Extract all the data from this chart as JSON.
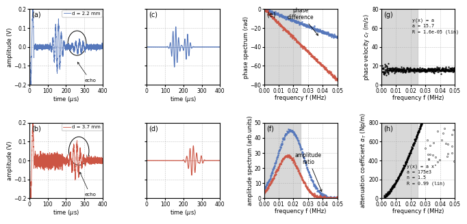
{
  "fig_width": 6.75,
  "fig_height": 3.3,
  "dpi": 100,
  "panel_labels": [
    "(a)",
    "(b)",
    "(c)",
    "(d)",
    "(e)",
    "(f)",
    "(g)",
    "(h)"
  ],
  "legend_a": "d = 2.2 mm",
  "legend_b": "d = 3.7 mm",
  "blue_color": "#5577bb",
  "red_color": "#cc5544",
  "gray_shade": "#c8c8c8",
  "time_xlim": [
    0,
    400
  ],
  "time_xticks": [
    0,
    100,
    200,
    300,
    400
  ],
  "freq_xlim": [
    0,
    0.05
  ],
  "freq_xticks": [
    0,
    0.01,
    0.02,
    0.03,
    0.04,
    0.05
  ],
  "amp_ylim": [
    -0.2,
    0.2
  ],
  "amp_yticks": [
    -0.2,
    -0.1,
    0,
    0.1,
    0.2
  ],
  "phase_ylim": [
    -80,
    0
  ],
  "phase_yticks": [
    -80,
    -60,
    -40,
    -20,
    0
  ],
  "amp_spec_ylim": [
    0,
    50
  ],
  "amp_spec_yticks": [
    0,
    10,
    20,
    30,
    40,
    50
  ],
  "vel_ylim": [
    0,
    80
  ],
  "vel_yticks": [
    0,
    20,
    40,
    60,
    80
  ],
  "atten_ylim": [
    0,
    800
  ],
  "atten_yticks": [
    0,
    200,
    400,
    600,
    800
  ],
  "gray_band_ef": [
    0.0,
    0.025
  ],
  "gray_band_gh": [
    0.0,
    0.025
  ],
  "annotation_phase": "phase\ndifference",
  "annotation_amp": "amplitude\nratio",
  "fit_text_g": "y(x) = a\na = 15.7\nR = 1.6e-05 (lin)",
  "fit_text_h": "y(x) = a xⁿ\na = 175e3\nn = 1.5\nR = 0.99 (lin)"
}
